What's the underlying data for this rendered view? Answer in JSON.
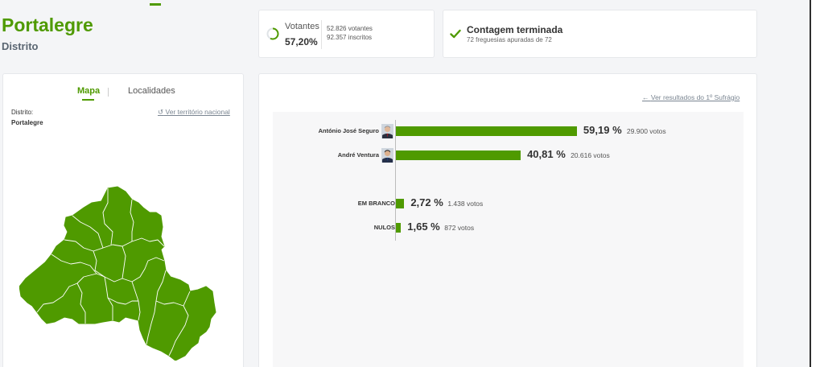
{
  "header": {
    "title": "Portalegre",
    "subtitle": "Distrito"
  },
  "votantes": {
    "label": "Votantes",
    "percent": "57,20%",
    "votantes_text": "52.826 votantes",
    "inscritos_text": "92.357 inscritos",
    "participation_fraction": 0.572
  },
  "contagem": {
    "title": "Contagem terminada",
    "subtitle": "72 freguesias apuradas de 72"
  },
  "map_card": {
    "tabs": [
      {
        "label": "Mapa"
      },
      {
        "label": "Localidades"
      }
    ],
    "distrito_label": "Distrito:",
    "distrito_value": "Portalegre",
    "national_link": "Ver território nacional"
  },
  "results": {
    "back_link": "Ver resultados do 1º Sufrágio",
    "rows": [
      {
        "name": "António José Seguro",
        "percent": "59,19 %",
        "votes": "29.900 votos",
        "value": 59.19
      },
      {
        "name": "André Ventura",
        "percent": "40,81 %",
        "votes": "20.616 votos",
        "value": 40.81
      },
      {
        "name": "EM BRANCO",
        "percent": "2,72 %",
        "votes": "1.438 votos",
        "value": 2.72
      },
      {
        "name": "NULOS",
        "percent": "1,65 %",
        "votes": "872 votos",
        "value": 1.65
      }
    ]
  },
  "colors": {
    "accent": "#4f9a00",
    "map_fill": "#4f9a00",
    "muted_text": "#7a8591"
  },
  "icons": {
    "participation": "progress-ring-icon",
    "complete": "check-icon",
    "reset": "refresh-icon",
    "back": "arrow-left-icon"
  }
}
